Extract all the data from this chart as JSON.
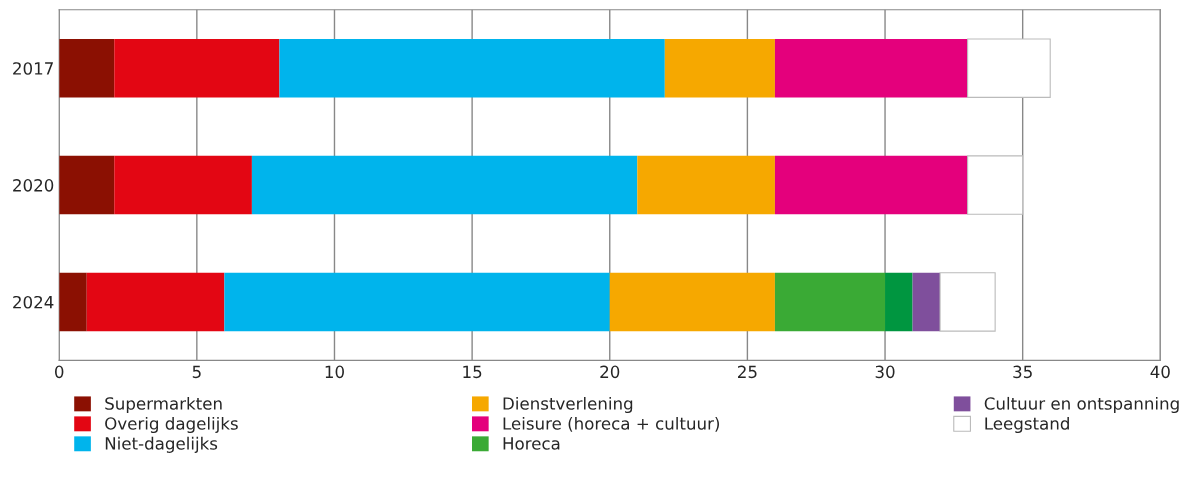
{
  "chart_data": {
    "type": "bar",
    "orientation": "horizontal",
    "stacked": true,
    "categories": [
      "2017",
      "2020",
      "2024"
    ],
    "series": [
      {
        "name": "Supermarkten",
        "color": "#8b1002",
        "values": [
          2,
          2,
          1
        ]
      },
      {
        "name": "Overig dagelijks",
        "color": "#e30613",
        "values": [
          6,
          5,
          5
        ]
      },
      {
        "name": "Niet-dagelijks",
        "color": "#00b4ec",
        "values": [
          14,
          14,
          14
        ]
      },
      {
        "name": "Dienstverlening",
        "color": "#f6a800",
        "values": [
          4,
          5,
          6
        ]
      },
      {
        "name": "Leisure (horeca + cultuur)",
        "color": "#e4007c",
        "values": [
          7,
          7,
          null
        ]
      },
      {
        "name": "Horeca",
        "color": "#3aaa35",
        "values": [
          null,
          null,
          4
        ]
      },
      {
        "color": "#009640",
        "values": [
          null,
          null,
          1
        ]
      },
      {
        "name": "Cultuur en ontspanning",
        "color": "#7f4f9c",
        "values": [
          null,
          null,
          1
        ]
      },
      {
        "name": "Leegstand",
        "color": "#ffffff",
        "values": [
          3,
          2,
          2
        ]
      }
    ],
    "xlim": [
      0,
      40
    ],
    "xticks": [
      0,
      5,
      10,
      15,
      20,
      25,
      30,
      35,
      40
    ],
    "grid": "x",
    "legend": "bottom"
  }
}
